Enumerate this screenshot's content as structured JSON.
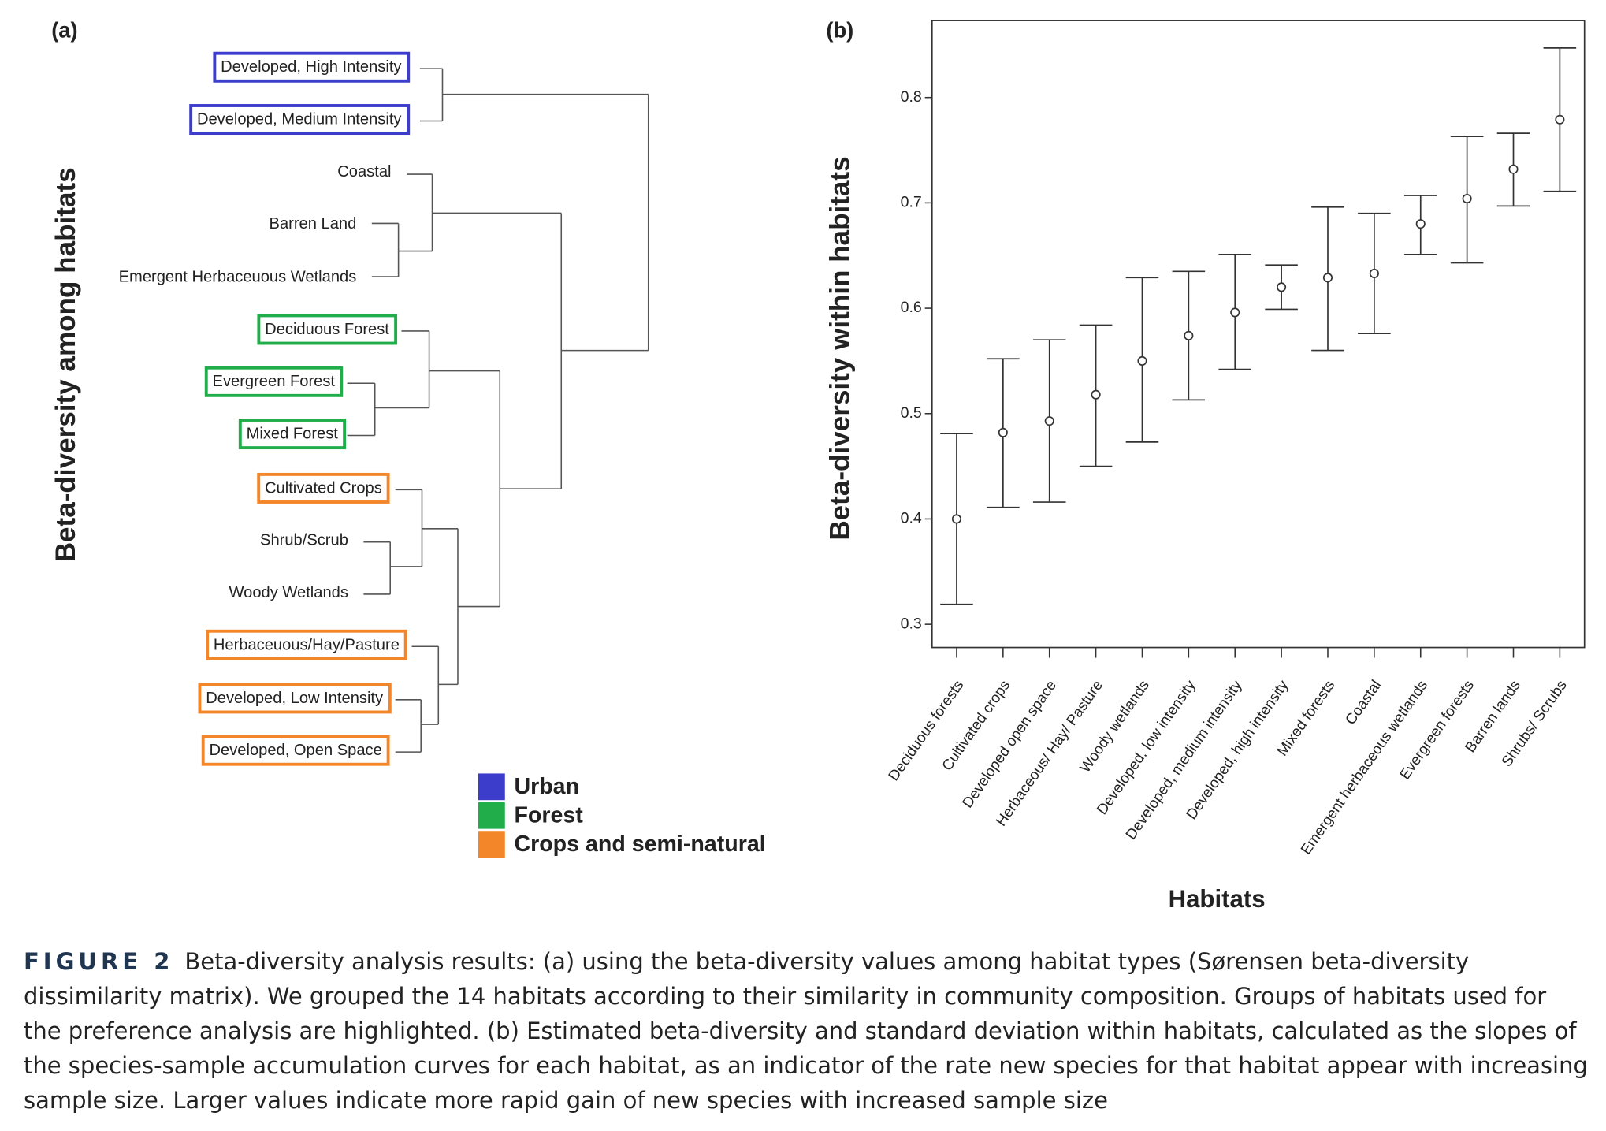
{
  "panel_a": {
    "label": "(a)",
    "axis_title": "Beta-diversity among habitats",
    "leaves": [
      {
        "label": "Developed, High Intensity",
        "group": 0
      },
      {
        "label": "Developed, Medium Intensity",
        "group": 0
      },
      {
        "label": "Coastal",
        "group": null
      },
      {
        "label": "Barren Land",
        "group": null
      },
      {
        "label": "Emergent Herbaceuous Wetlands",
        "group": null
      },
      {
        "label": "Deciduous Forest",
        "group": 1
      },
      {
        "label": "Evergreen Forest",
        "group": 1
      },
      {
        "label": "Mixed Forest",
        "group": 1
      },
      {
        "label": "Cultivated Crops",
        "group": 2
      },
      {
        "label": "Shrub/Scrub",
        "group": null
      },
      {
        "label": "Woody Wetlands",
        "group": null
      },
      {
        "label": "Herbaceuous/Hay/Pasture",
        "group": 2
      },
      {
        "label": "Developed, Low Intensity",
        "group": 2
      },
      {
        "label": "Developed, Open Space",
        "group": 2
      }
    ],
    "legend": [
      {
        "name": "Urban",
        "color": "#3d3dcc"
      },
      {
        "name": "Forest",
        "color": "#20ad4a"
      },
      {
        "name": "Crops and semi-natural",
        "color": "#f4862a"
      }
    ]
  },
  "chart_data": {
    "type": "errorbar",
    "label": "(b)",
    "y_label": "Beta-diversity within habitats",
    "x_label": "Habitats",
    "categories": [
      "Deciduous forests",
      "Cultivated crops",
      "Developed open space",
      "Herbaceous/ Hay/ Pasture",
      "Woody wetlands",
      "Developed, low intensity",
      "Developed, medium intensity",
      "Developed, high intensity",
      "Mixed forests",
      "Coastal",
      "Emergent herbaceous wetlands",
      "Evergreen forests",
      "Barren lands",
      "Shrubs/ Scrubs"
    ],
    "values": [
      0.4,
      0.482,
      0.493,
      0.518,
      0.55,
      0.574,
      0.596,
      0.62,
      0.629,
      0.633,
      0.68,
      0.704,
      0.732,
      0.779
    ],
    "lower": [
      0.319,
      0.411,
      0.416,
      0.45,
      0.473,
      0.513,
      0.542,
      0.599,
      0.56,
      0.576,
      0.651,
      0.643,
      0.697,
      0.711
    ],
    "upper": [
      0.481,
      0.552,
      0.57,
      0.584,
      0.629,
      0.635,
      0.651,
      0.641,
      0.696,
      0.69,
      0.707,
      0.763,
      0.766,
      0.847
    ],
    "color": "#333333",
    "ylim": [
      0.278,
      0.873
    ],
    "yticks": [
      0.3,
      0.4,
      0.5,
      0.6,
      0.7,
      0.8
    ]
  },
  "caption": {
    "label": "FIGURE 2",
    "text": "Beta-diversity analysis results: (a) using the beta-diversity values among habitat types (Sørensen beta-diversity dissimilarity matrix). We grouped the 14 habitats according to their similarity in community composition. Groups of habitats used for the preference analysis are highlighted. (b) Estimated beta-diversity and standard deviation within habitats, calculated as the slopes of the species-sample accumulation curves for each habitat, as an indicator of the rate new species for that habitat appear with increasing sample size. Larger values indicate more rapid gain of new species with increased sample size"
  }
}
